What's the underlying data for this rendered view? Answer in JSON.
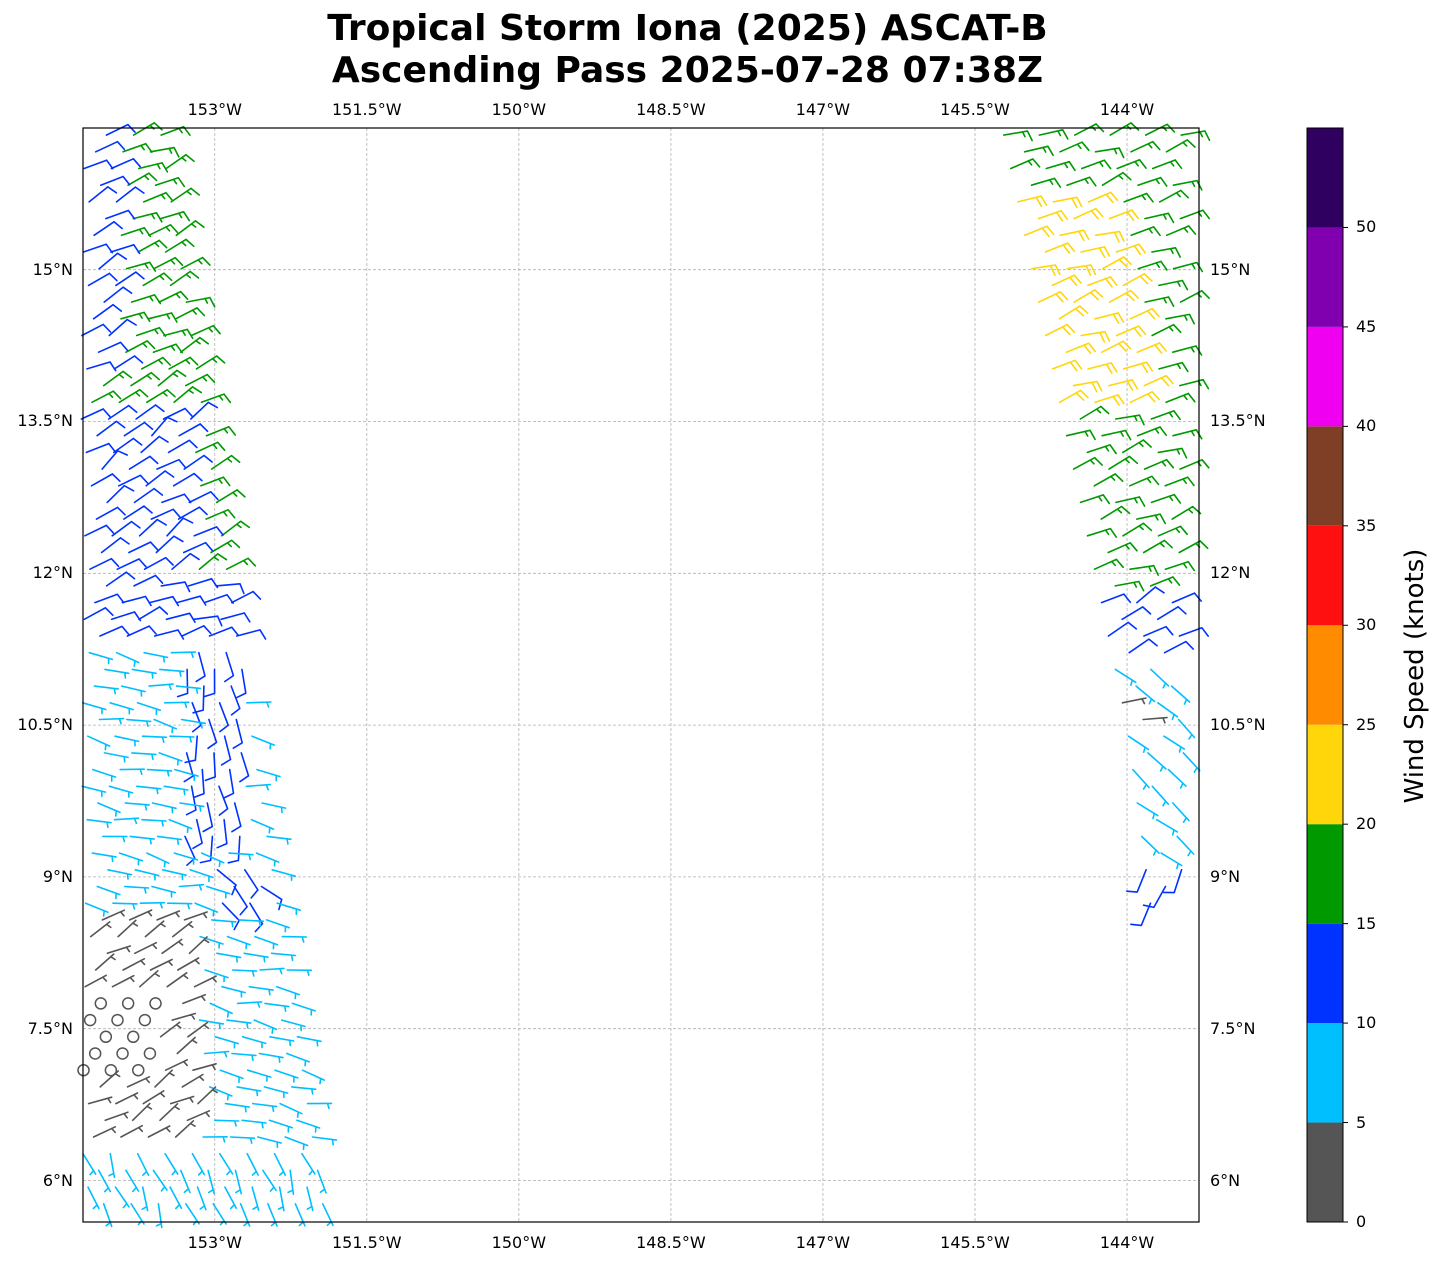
{
  "title_line1": "Tropical Storm Iona (2025) ASCAT-B",
  "title_line2": "Ascending Pass 2025-07-28 07:38Z",
  "map": {
    "extent": {
      "lon": [
        -154.3,
        -143.29
      ],
      "lat": [
        5.59,
        16.4
      ]
    },
    "lon_ticks": [
      {
        "value": -153,
        "label": "153°W"
      },
      {
        "value": -151.5,
        "label": "151.5°W"
      },
      {
        "value": -150,
        "label": "150°W"
      },
      {
        "value": -148.5,
        "label": "148.5°W"
      },
      {
        "value": -147,
        "label": "147°W"
      },
      {
        "value": -145.5,
        "label": "145.5°W"
      },
      {
        "value": -144,
        "label": "144°W"
      }
    ],
    "lat_ticks": [
      {
        "value": 15,
        "label": "15°N"
      },
      {
        "value": 13.5,
        "label": "13.5°N"
      },
      {
        "value": 12,
        "label": "12°N"
      },
      {
        "value": 10.5,
        "label": "10.5°N"
      },
      {
        "value": 9,
        "label": "9°N"
      },
      {
        "value": 7.5,
        "label": "7.5°N"
      },
      {
        "value": 6,
        "label": "6°N"
      }
    ],
    "gridlines": true
  },
  "colorbar": {
    "label": "Wind Speed (knots)",
    "range": [
      0,
      55
    ],
    "bins": [
      {
        "from": 0,
        "to": 5,
        "color": "#555555"
      },
      {
        "from": 5,
        "to": 10,
        "color": "#00bfff"
      },
      {
        "from": 10,
        "to": 15,
        "color": "#0033ff"
      },
      {
        "from": 15,
        "to": 20,
        "color": "#009900"
      },
      {
        "from": 20,
        "to": 25,
        "color": "#ffd60a"
      },
      {
        "from": 25,
        "to": 30,
        "color": "#ff8c00"
      },
      {
        "from": 30,
        "to": 35,
        "color": "#ff1010"
      },
      {
        "from": 35,
        "to": 40,
        "color": "#7f3f27"
      },
      {
        "from": 40,
        "to": 45,
        "color": "#f000f0"
      },
      {
        "from": 45,
        "to": 50,
        "color": "#8000b0"
      },
      {
        "from": 50,
        "to": 55,
        "color": "#2f0060"
      }
    ],
    "ticks": [
      "0",
      "5",
      "10",
      "15",
      "20",
      "25",
      "30",
      "35",
      "40",
      "45",
      "50"
    ]
  },
  "wind_field": {
    "units": "knots",
    "swaths": [
      {
        "name": "west",
        "lat": [
          5.6,
          16.4
        ]
      },
      {
        "name": "east",
        "lat": [
          8.6,
          16.4
        ]
      }
    ],
    "zones": [
      {
        "swath": "west",
        "lat": [
          5.6,
          16.4
        ],
        "speed": 7,
        "dir": 100
      },
      {
        "swath": "west",
        "lat": [
          11.8,
          16.4
        ],
        "speed": 17,
        "dir": 65
      },
      {
        "swath": "west",
        "lat": [
          11.9,
          13.6
        ],
        "lon": [
          -154.4,
          -153.2
        ],
        "speed": 12,
        "dir": 55
      },
      {
        "swath": "west",
        "lat": [
          14.0,
          16.4
        ],
        "lon": [
          -154.4,
          -153.95
        ],
        "speed": 12,
        "dir": 60
      },
      {
        "swath": "west",
        "lat": [
          11.3,
          11.9
        ],
        "speed": 12,
        "dir": 70
      },
      {
        "swath": "west",
        "lat": [
          9.4,
          11.3
        ],
        "lon": [
          -153.3,
          -152.7
        ],
        "speed": 12,
        "dir": 170
      },
      {
        "swath": "west",
        "lat": [
          8.7,
          9.2
        ],
        "lon": [
          -153.0,
          -152.5
        ],
        "speed": 12,
        "dir": 135
      },
      {
        "swath": "west",
        "lat": [
          6.3,
          8.6
        ],
        "lon": [
          -154.4,
          -153.15
        ],
        "speed": 3,
        "dir": 60
      },
      {
        "swath": "west",
        "lat": [
          7.05,
          7.8
        ],
        "lon": [
          -154.4,
          -153.55
        ],
        "speed": 0,
        "dir": 0
      },
      {
        "swath": "west",
        "lat": [
          5.6,
          6.4
        ],
        "speed": 7,
        "dir": 160
      },
      {
        "swath": "east",
        "lat": [
          11.8,
          16.4
        ],
        "speed": 17,
        "dir": 70
      },
      {
        "swath": "east",
        "lat": [
          13.6,
          15.8
        ],
        "band": [
          0,
          1.0
        ],
        "speed": 22,
        "dir": 70
      },
      {
        "swath": "east",
        "lat": [
          11.2,
          11.8
        ],
        "speed": 12,
        "dir": 60
      },
      {
        "swath": "east",
        "lat": [
          9.1,
          11.2
        ],
        "speed": 7,
        "dir": 130
      },
      {
        "swath": "east",
        "lat": [
          10.4,
          10.8
        ],
        "band": [
          0,
          0.2
        ],
        "speed": 3,
        "dir": 90
      },
      {
        "swath": "east",
        "lat": [
          8.6,
          9.1
        ],
        "speed": 12,
        "dir": 200
      }
    ]
  }
}
